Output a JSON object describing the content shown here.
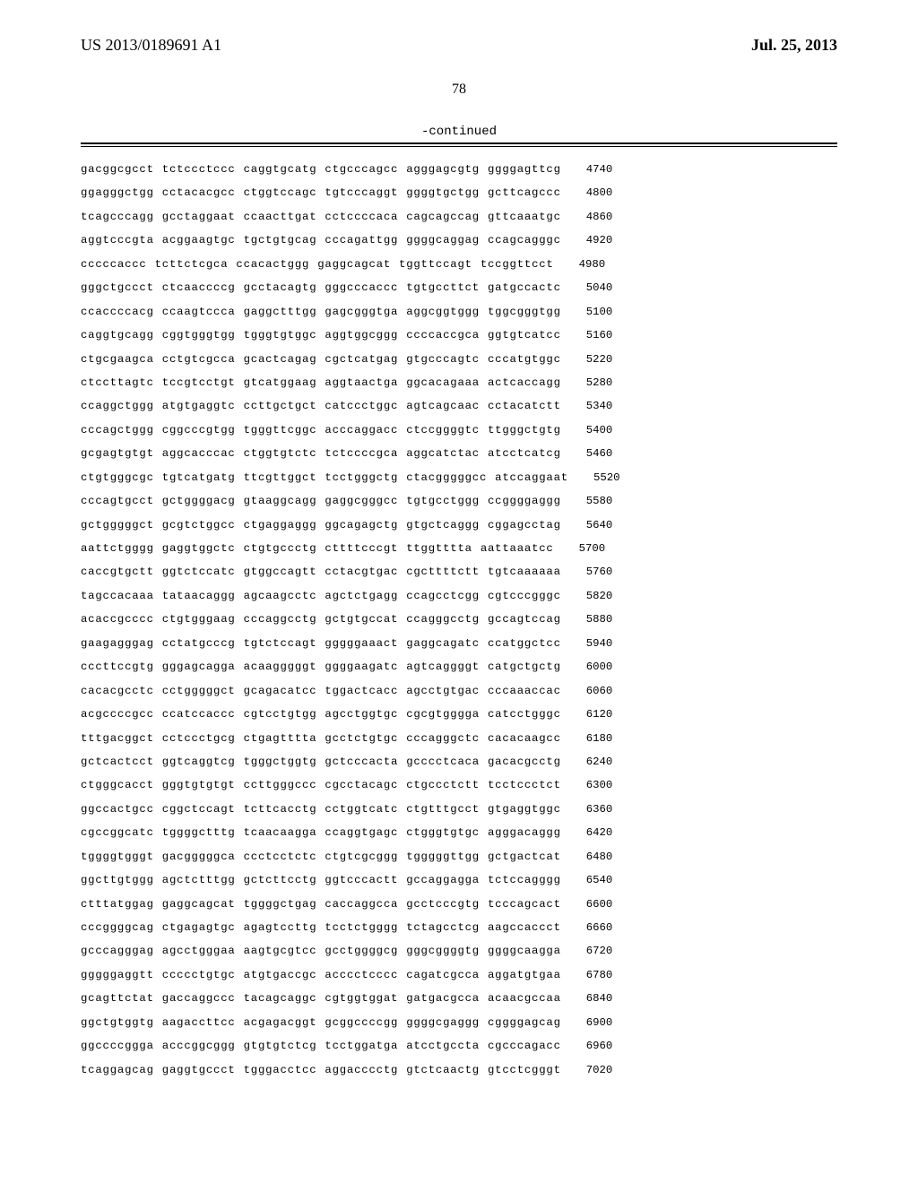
{
  "header": {
    "publication_number": "US 2013/0189691 A1",
    "publication_date": "Jul. 25, 2013"
  },
  "page_number": "78",
  "continued_label": "-continued",
  "sequence": {
    "rows": [
      {
        "groups": [
          "gacggcgcct",
          "tctccctccc",
          "caggtgcatg",
          "ctgcccagcc",
          "agggagcgtg",
          "ggggagttcg"
        ],
        "pos": "4740"
      },
      {
        "groups": [
          "ggagggctgg",
          "cctacacgcc",
          "ctggtccagc",
          "tgtcccaggt",
          "ggggtgctgg",
          "gcttcagccc"
        ],
        "pos": "4800"
      },
      {
        "groups": [
          "tcagcccagg",
          "gcctaggaat",
          "ccaacttgat",
          "cctccccaca",
          "cagcagccag",
          "gttcaaatgc"
        ],
        "pos": "4860"
      },
      {
        "groups": [
          "aggtcccgta",
          "acggaagtgc",
          "tgctgtgcag",
          "cccagattgg",
          "ggggcaggag",
          "ccagcagggc"
        ],
        "pos": "4920"
      },
      {
        "groups": [
          "cccccaccc",
          "tcttctcgca",
          "ccacactggg",
          "gaggcagcat",
          "tggttccagt",
          "tccggttcct"
        ],
        "pos": "4980"
      },
      {
        "groups": [
          "gggctgccct",
          "ctcaaccccg",
          "gcctacagtg",
          "gggcccaccc",
          "tgtgccttct",
          "gatgccactc"
        ],
        "pos": "5040"
      },
      {
        "groups": [
          "ccaccccacg",
          "ccaagtccca",
          "gaggctttgg",
          "gagcgggtga",
          "aggcggtggg",
          "tggcgggtgg"
        ],
        "pos": "5100"
      },
      {
        "groups": [
          "caggtgcagg",
          "cggtgggtgg",
          "tgggtgtggc",
          "aggtggcggg",
          "ccccaccgca",
          "ggtgtcatcc"
        ],
        "pos": "5160"
      },
      {
        "groups": [
          "ctgcgaagca",
          "cctgtcgcca",
          "gcactcagag",
          "cgctcatgag",
          "gtgcccagtc",
          "cccatgtggc"
        ],
        "pos": "5220"
      },
      {
        "groups": [
          "ctccttagtc",
          "tccgtcctgt",
          "gtcatggaag",
          "aggtaactga",
          "ggcacagaaa",
          "actcaccagg"
        ],
        "pos": "5280"
      },
      {
        "groups": [
          "ccaggctggg",
          "atgtgaggtc",
          "ccttgctgct",
          "catccctggc",
          "agtcagcaac",
          "cctacatctt"
        ],
        "pos": "5340"
      },
      {
        "groups": [
          "cccagctggg",
          "cggcccgtgg",
          "tgggttcggc",
          "acccaggacc",
          "ctccggggtc",
          "ttgggctgtg"
        ],
        "pos": "5400"
      },
      {
        "groups": [
          "gcgagtgtgt",
          "aggcacccac",
          "ctggtgtctc",
          "tctccccgca",
          "aggcatctac",
          "atcctcatcg"
        ],
        "pos": "5460"
      },
      {
        "groups": [
          "ctgtgggcgc",
          "tgtcatgatg",
          "ttcgttggct",
          "tcctgggctg",
          "ctacgggggcc",
          "atccaggaat"
        ],
        "pos": "5520"
      },
      {
        "groups": [
          "cccagtgcct",
          "gctggggacg",
          "gtaaggcagg",
          "gaggcgggcc",
          "tgtgcctggg",
          "ccggggaggg"
        ],
        "pos": "5580"
      },
      {
        "groups": [
          "gctgggggct",
          "gcgtctggcc",
          "ctgaggaggg",
          "ggcagagctg",
          "gtgctcaggg",
          "cggagcctag"
        ],
        "pos": "5640"
      },
      {
        "groups": [
          "aattctgggg",
          "gaggtggctc",
          "ctgtgccctg",
          "cttttcccgt",
          "ttggtttta",
          "aattaaatcc"
        ],
        "pos": "5700"
      },
      {
        "groups": [
          "caccgtgctt",
          "ggtctccatc",
          "gtggccagtt",
          "cctacgtgac",
          "cgcttttctt",
          "tgtcaaaaaa"
        ],
        "pos": "5760"
      },
      {
        "groups": [
          "tagccacaaa",
          "tataacaggg",
          "agcaagcctc",
          "agctctgagg",
          "ccagcctcgg",
          "cgtcccgggc"
        ],
        "pos": "5820"
      },
      {
        "groups": [
          "acaccgcccc",
          "ctgtgggaag",
          "cccaggcctg",
          "gctgtgccat",
          "ccagggcctg",
          "gccagtccag"
        ],
        "pos": "5880"
      },
      {
        "groups": [
          "gaagagggag",
          "cctatgcccg",
          "tgtctccagt",
          "gggggaaact",
          "gaggcagatc",
          "ccatggctcc"
        ],
        "pos": "5940"
      },
      {
        "groups": [
          "cccttccgtg",
          "gggagcagga",
          "acaagggggt",
          "ggggaagatc",
          "agtcaggggt",
          "catgctgctg"
        ],
        "pos": "6000"
      },
      {
        "groups": [
          "cacacgcctc",
          "cctgggggct",
          "gcagacatcc",
          "tggactcacc",
          "agcctgtgac",
          "cccaaaccac"
        ],
        "pos": "6060"
      },
      {
        "groups": [
          "acgccccgcc",
          "ccatccaccc",
          "cgtcctgtgg",
          "agcctggtgc",
          "cgcgtgggga",
          "catcctgggc"
        ],
        "pos": "6120"
      },
      {
        "groups": [
          "tttgacggct",
          "cctccctgcg",
          "ctgagtttta",
          "gcctctgtgc",
          "cccagggctc",
          "cacacaagcc"
        ],
        "pos": "6180"
      },
      {
        "groups": [
          "gctcactcct",
          "ggtcaggtcg",
          "tgggctggtg",
          "gctcccacta",
          "gcccctcaca",
          "gacacgcctg"
        ],
        "pos": "6240"
      },
      {
        "groups": [
          "ctgggcacct",
          "gggtgtgtgt",
          "ccttgggccc",
          "cgcctacagc",
          "ctgccctctt",
          "tcctccctct"
        ],
        "pos": "6300"
      },
      {
        "groups": [
          "ggccactgcc",
          "cggctccagt",
          "tcttcacctg",
          "cctggtcatc",
          "ctgtttgcct",
          "gtgaggtggc"
        ],
        "pos": "6360"
      },
      {
        "groups": [
          "cgccggcatc",
          "tggggctttg",
          "tcaacaagga",
          "ccaggtgagc",
          "ctgggtgtgc",
          "agggacaggg"
        ],
        "pos": "6420"
      },
      {
        "groups": [
          "tggggtgggt",
          "gacgggggca",
          "ccctcctctc",
          "ctgtcgcggg",
          "tgggggttgg",
          "gctgactcat"
        ],
        "pos": "6480"
      },
      {
        "groups": [
          "ggcttgtggg",
          "agctctttgg",
          "gctcttcctg",
          "ggtcccactt",
          "gccaggagga",
          "tctccagggg"
        ],
        "pos": "6540"
      },
      {
        "groups": [
          "ctttatggag",
          "gaggcagcat",
          "tggggctgag",
          "caccaggcca",
          "gcctcccgtg",
          "tcccagcact"
        ],
        "pos": "6600"
      },
      {
        "groups": [
          "cccggggcag",
          "ctgagagtgc",
          "agagtccttg",
          "tcctctgggg",
          "tctagcctcg",
          "aagccaccct"
        ],
        "pos": "6660"
      },
      {
        "groups": [
          "gcccagggag",
          "agcctgggaa",
          "aagtgcgtcc",
          "gcctggggcg",
          "gggcggggtg",
          "ggggcaagga"
        ],
        "pos": "6720"
      },
      {
        "groups": [
          "gggggaggtt",
          "ccccctgtgc",
          "atgtgaccgc",
          "acccctcccc",
          "cagatcgcca",
          "aggatgtgaa"
        ],
        "pos": "6780"
      },
      {
        "groups": [
          "gcagttctat",
          "gaccaggccc",
          "tacagcaggc",
          "cgtggtggat",
          "gatgacgcca",
          "acaacgccaa"
        ],
        "pos": "6840"
      },
      {
        "groups": [
          "ggctgtggtg",
          "aagaccttcc",
          "acgagacggt",
          "gcggccccgg",
          "ggggcgaggg",
          "cggggagcag"
        ],
        "pos": "6900"
      },
      {
        "groups": [
          "ggccccggga",
          "acccggcggg",
          "gtgtgtctcg",
          "tcctggatga",
          "atcctgccta",
          "cgcccagacc"
        ],
        "pos": "6960"
      },
      {
        "groups": [
          "tcaggagcag",
          "gaggtgccct",
          "tgggacctcc",
          "aggacccctg",
          "gtctcaactg",
          "gtcctcgggt"
        ],
        "pos": "7020"
      }
    ]
  }
}
